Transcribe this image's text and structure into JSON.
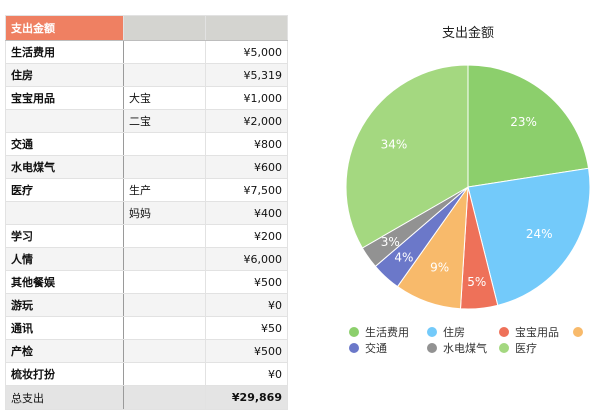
{
  "table": {
    "header": "支出金额",
    "rows": [
      {
        "category": "生活费用",
        "sub": "",
        "amount": "¥5,000"
      },
      {
        "category": "住房",
        "sub": "",
        "amount": "¥5,319"
      },
      {
        "category": "宝宝用品",
        "sub": "大宝",
        "amount": "¥1,000"
      },
      {
        "category": "",
        "sub": "二宝",
        "amount": "¥2,000"
      },
      {
        "category": "交通",
        "sub": "",
        "amount": "¥800"
      },
      {
        "category": "水电煤气",
        "sub": "",
        "amount": "¥600"
      },
      {
        "category": "医疗",
        "sub": "生产",
        "amount": "¥7,500"
      },
      {
        "category": "",
        "sub": "妈妈",
        "amount": "¥400"
      },
      {
        "category": "学习",
        "sub": "",
        "amount": "¥200"
      },
      {
        "category": "人情",
        "sub": "",
        "amount": "¥6,000"
      },
      {
        "category": "其他餐娱",
        "sub": "",
        "amount": "¥500"
      },
      {
        "category": "游玩",
        "sub": "",
        "amount": "¥0"
      },
      {
        "category": "通讯",
        "sub": "",
        "amount": "¥50"
      },
      {
        "category": "产检",
        "sub": "",
        "amount": "¥500"
      },
      {
        "category": "梳妆打扮",
        "sub": "",
        "amount": "¥0"
      }
    ],
    "total_label": "总支出",
    "total_amount": "¥29,869"
  },
  "chart_data": {
    "type": "pie",
    "title": "支出金额",
    "slices": [
      {
        "label": "生活费用",
        "value": 23,
        "display": "23%",
        "color": "#8ccf6c"
      },
      {
        "label": "住房",
        "value": 24,
        "display": "24%",
        "color": "#73cafa"
      },
      {
        "label": "宝宝用品",
        "value": 5,
        "display": "5%",
        "color": "#ee7159"
      },
      {
        "label": "",
        "value": 9,
        "display": "9%",
        "color": "#f8ba6b"
      },
      {
        "label": "交通",
        "value": 4,
        "display": "4%",
        "color": "#6b78c9"
      },
      {
        "label": "水电煤气",
        "value": 3,
        "display": "3%",
        "color": "#929292"
      },
      {
        "label": "医疗",
        "value": 34,
        "display": "34%",
        "color": "#a4d880"
      }
    ],
    "legend_position": "bottom"
  }
}
